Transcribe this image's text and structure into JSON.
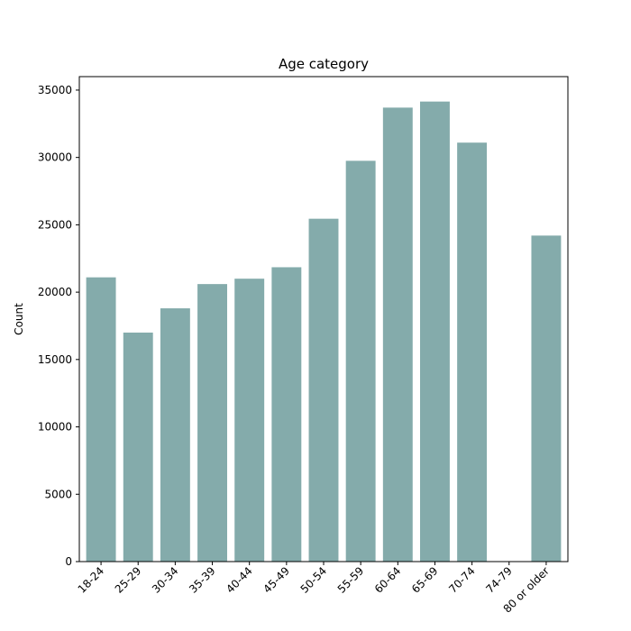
{
  "chart_data": {
    "type": "bar",
    "title": "Age category",
    "xlabel": "",
    "ylabel": "Count",
    "categories": [
      "18-24",
      "25-29",
      "30-34",
      "35-39",
      "40-44",
      "45-49",
      "50-54",
      "55-59",
      "60-64",
      "65-69",
      "70-74",
      "74-79",
      "80 or older"
    ],
    "values": [
      21100,
      17000,
      18800,
      20600,
      21000,
      21850,
      25450,
      29750,
      33700,
      34150,
      31100,
      0,
      24200
    ],
    "ylim": [
      0,
      36000
    ],
    "yticks": [
      0,
      5000,
      10000,
      15000,
      20000,
      25000,
      30000,
      35000
    ],
    "yticklabels": [
      "0",
      "5000",
      "10000",
      "15000",
      "20000",
      "25000",
      "30000",
      "35000"
    ],
    "bar_color": "#84abab",
    "grid": false,
    "legend": false
  }
}
